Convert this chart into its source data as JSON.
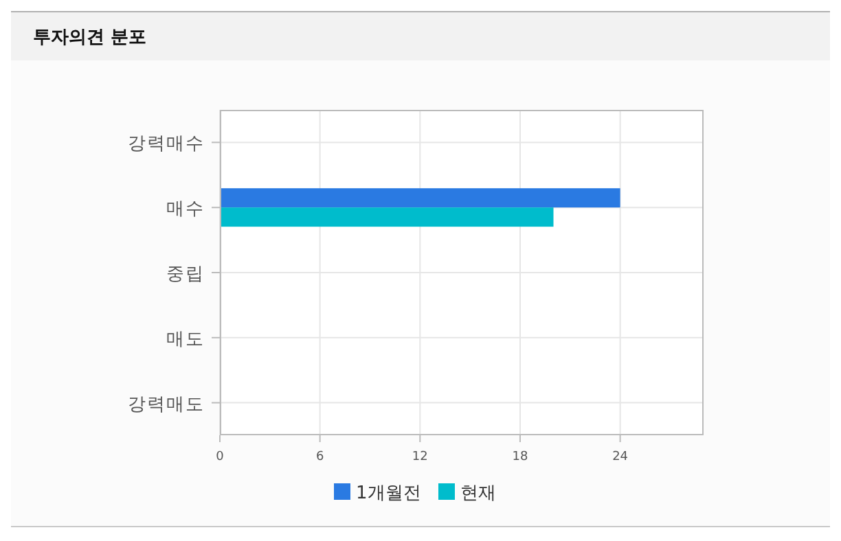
{
  "chart_data": {
    "type": "bar",
    "orientation": "horizontal",
    "title": "투자의견 분포",
    "categories": [
      "강력매수",
      "매수",
      "중립",
      "매도",
      "강력매도"
    ],
    "series": [
      {
        "name": "1개월전",
        "color": "#2a7ae2",
        "values": [
          0,
          24,
          0,
          0,
          0
        ]
      },
      {
        "name": "현재",
        "color": "#00bccc",
        "values": [
          0,
          20,
          0,
          0,
          0
        ]
      }
    ],
    "xlim": [
      0,
      29
    ],
    "xticks": [
      0,
      6,
      12,
      18,
      24
    ],
    "grid": true,
    "legend": "bottom"
  }
}
